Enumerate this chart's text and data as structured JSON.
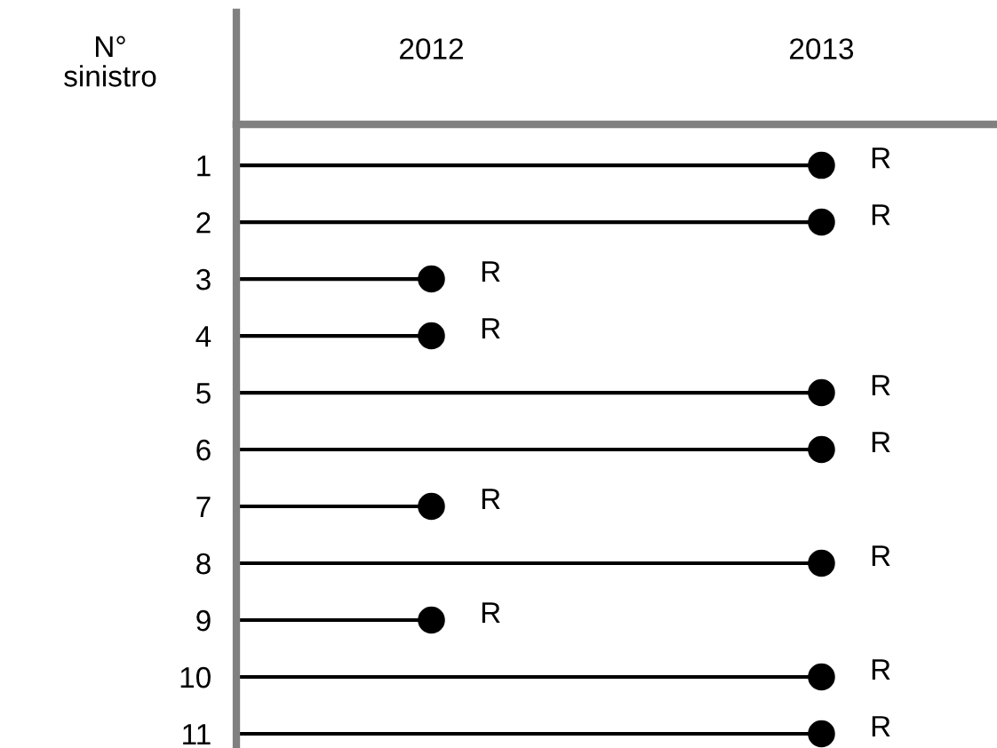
{
  "chart_data": {
    "type": "lollipop",
    "orientation": "horizontal",
    "ylabel": "N° sinistro",
    "categories": [
      "1",
      "2",
      "3",
      "4",
      "5",
      "6",
      "7",
      "8",
      "9",
      "10",
      "11"
    ],
    "values": [
      2013,
      2013,
      2012,
      2012,
      2013,
      2013,
      2012,
      2013,
      2012,
      2013,
      2013
    ],
    "value_labels": [
      "R",
      "R",
      "R",
      "R",
      "R",
      "R",
      "R",
      "R",
      "R",
      "R",
      "R"
    ],
    "color": "#000000",
    "xlim": [
      2011.5,
      2013.45
    ],
    "xticks": [
      2012,
      2013
    ],
    "marker": "circle",
    "grid": false,
    "legend": false
  }
}
